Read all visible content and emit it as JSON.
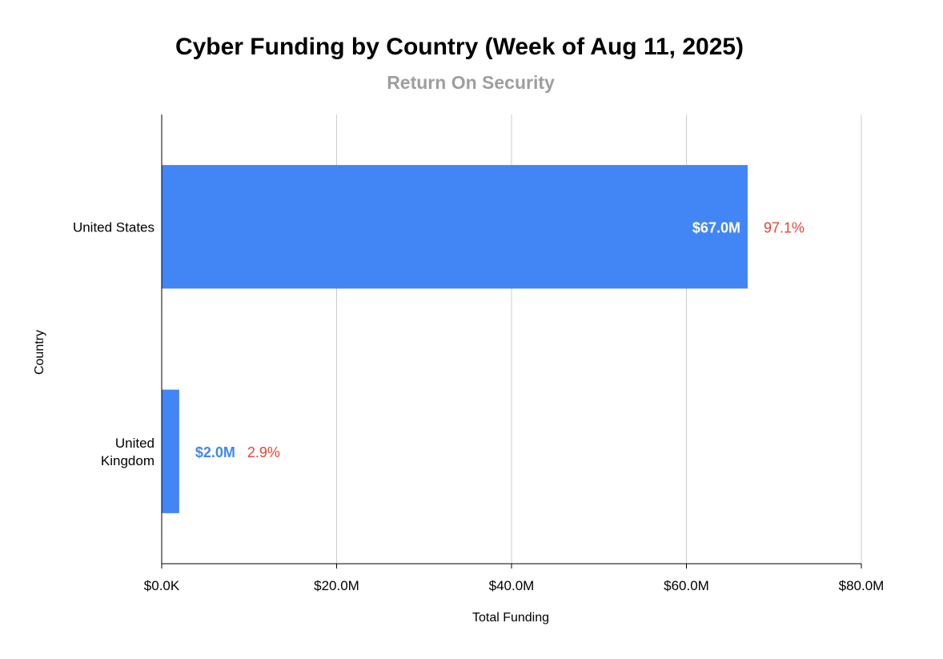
{
  "chart_data": {
    "type": "bar",
    "orientation": "horizontal",
    "title": "Cyber Funding by Country (Week of Aug 11, 2025)",
    "subtitle": "Return On Security",
    "xlabel": "Total Funding",
    "ylabel": "Country",
    "categories": [
      "United States",
      "United Kingdom"
    ],
    "values": [
      67.0,
      2.0
    ],
    "value_unit": "$M",
    "value_labels": [
      "$67.0M",
      "$2.0M"
    ],
    "percent_labels": [
      "97.1%",
      "2.9%"
    ],
    "xlim": [
      0,
      80
    ],
    "x_ticks": [
      0,
      20,
      40,
      60,
      80
    ],
    "x_tick_labels": [
      "$0.0K",
      "$20.0M",
      "$40.0M",
      "$60.0M",
      "$80.0M"
    ],
    "grid": true,
    "legend": "none",
    "colors": {
      "bar": "#4285f4",
      "percent_label": "#ea4335",
      "subtitle": "#9e9e9e",
      "grid": "#cccccc",
      "axis": "#000000"
    }
  }
}
